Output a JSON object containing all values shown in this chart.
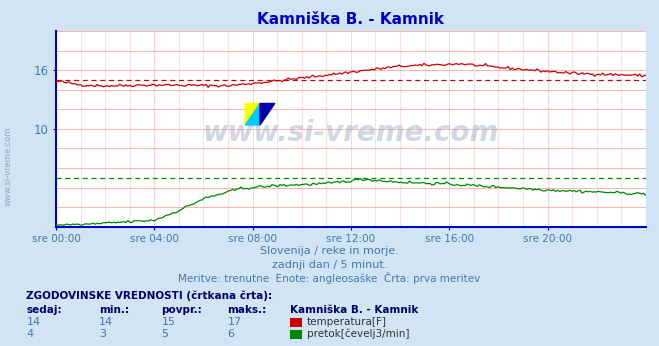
{
  "title": "Kamniška B. - Kamnik",
  "title_color": "#0000cc",
  "bg_color": "#d0e4f4",
  "plot_bg_color": "#ffffff",
  "grid_color_h": "#ffb0b0",
  "grid_color_v": "#ffd0d0",
  "tick_color": "#4477aa",
  "ylabel_left_range": [
    0,
    20
  ],
  "yticks_shown": [
    10,
    16
  ],
  "xtick_labels": [
    "sre 00:00",
    "sre 04:00",
    "sre 08:00",
    "sre 12:00",
    "sre 16:00",
    "sre 20:00"
  ],
  "n_points": 288,
  "temp_color": "#cc0000",
  "temp_avg": 15,
  "flow_color": "#008800",
  "flow_avg": 5,
  "watermark": "www.si-vreme.com",
  "subtitle1": "Slovenija / reke in morje.",
  "subtitle2": "zadnji dan / 5 minut.",
  "subtitle3": "Meritve: trenutne  Enote: angleosaške  Črta: prva meritev",
  "legend_title": "ZGODOVINSKE VREDNOSTI (črtkana črta):",
  "legend_headers": [
    "sedaj:",
    "min.:",
    "povpr.:",
    "maks.:",
    "Kamniška B. - Kamnik"
  ],
  "legend_row1": [
    "14",
    "14",
    "15",
    "17",
    "temperatura[F]"
  ],
  "legend_row2": [
    "4",
    "3",
    "5",
    "6",
    "pretok[čevelj3/min]"
  ],
  "axis_color": "#0000cc",
  "arrow_color": "#cc0000",
  "left_watermark": "www.si-vreme.com"
}
